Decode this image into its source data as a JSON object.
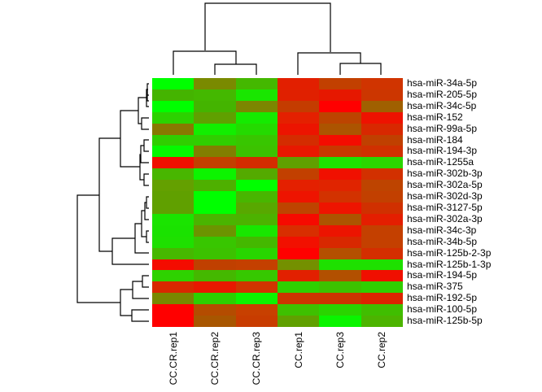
{
  "chart_data": {
    "type": "heatmap",
    "title": "",
    "xlabel": "",
    "ylabel": "",
    "color_scale": {
      "low": "#00ff00",
      "mid": "#808000",
      "high": "#ff0000"
    },
    "columns": [
      "CC.CR.rep1",
      "CC.CR.rep2",
      "CC.CR.rep3",
      "CC.rep1",
      "CC.rep3",
      "CC.rep2"
    ],
    "rows": [
      "hsa-miR-34a-5p",
      "hsa-miR-205-5p",
      "hsa-miR-34c-5p",
      "hsa-miR-152",
      "hsa-miR-99a-5p",
      "hsa-miR-184",
      "hsa-miR-194-3p",
      "hsa-miR-1255a",
      "hsa-miR-302b-3p",
      "hsa-miR-302a-5p",
      "hsa-miR-302d-3p",
      "hsa-miR-3127-5p",
      "hsa-miR-302a-3p",
      "hsa-miR-34c-3p",
      "hsa-miR-34b-5p",
      "hsa-miR-125b-2-3p",
      "hsa-miR-125b-1-3p",
      "hsa-miR-194-5p",
      "hsa-miR-375",
      "hsa-miR-192-5p",
      "hsa-miR-100-5p",
      "hsa-miR-125b-5p"
    ],
    "cell_colors": [
      [
        "#00ff00",
        "#7a8a00",
        "#44b800",
        "#e21f00",
        "#c24000",
        "#d03400"
      ],
      [
        "#44b400",
        "#44b800",
        "#19e600",
        "#e02000",
        "#e61800",
        "#cc3600"
      ],
      [
        "#00ff00",
        "#44b400",
        "#7c8600",
        "#c43c00",
        "#ff0000",
        "#a06000"
      ],
      [
        "#2cd200",
        "#60a000",
        "#15ea00",
        "#e42000",
        "#bc4400",
        "#ee1200"
      ],
      [
        "#887800",
        "#12ee00",
        "#24da00",
        "#ec1400",
        "#ac5400",
        "#d82800"
      ],
      [
        "#30ce00",
        "#30ce00",
        "#38c600",
        "#d42c00",
        "#f40c00",
        "#c04000"
      ],
      [
        "#06f800",
        "#827e00",
        "#3cc200",
        "#e81800",
        "#c83800",
        "#d03000"
      ],
      [
        "#f01000",
        "#c24000",
        "#d42c00",
        "#60a000",
        "#1ee200",
        "#2ad600"
      ],
      [
        "#48b600",
        "#0cf400",
        "#54aa00",
        "#c24000",
        "#f01000",
        "#d23000"
      ],
      [
        "#64a000",
        "#4eb000",
        "#00ff00",
        "#e42000",
        "#e02400",
        "#be4400"
      ],
      [
        "#60a000",
        "#00ff00",
        "#48b600",
        "#ee1400",
        "#d23200",
        "#c24000"
      ],
      [
        "#60a000",
        "#00ff00",
        "#58a800",
        "#be4400",
        "#ee1400",
        "#d03000"
      ],
      [
        "#1ae400",
        "#4ab400",
        "#4cb200",
        "#f60a00",
        "#ac5400",
        "#e41e00"
      ],
      [
        "#1ae200",
        "#6c9400",
        "#18e600",
        "#d82e00",
        "#ec1400",
        "#c44000"
      ],
      [
        "#1ee000",
        "#38c600",
        "#44b800",
        "#f21000",
        "#d82800",
        "#c44000"
      ],
      [
        "#46b800",
        "#3cc200",
        "#28d600",
        "#ff0000",
        "#b45000",
        "#d42e00"
      ],
      [
        "#f40c00",
        "#c04000",
        "#c44000",
        "#749000",
        "#1ee000",
        "#1ee000"
      ],
      [
        "#2ed200",
        "#44b800",
        "#36c800",
        "#e22000",
        "#b25000",
        "#f00f00"
      ],
      [
        "#d82800",
        "#e81800",
        "#d03400",
        "#2ed000",
        "#3cc200",
        "#30ce00"
      ],
      [
        "#788800",
        "#2cd000",
        "#0cf400",
        "#cc3400",
        "#cc3400",
        "#dc2400"
      ],
      [
        "#ff0000",
        "#b44c00",
        "#c84000",
        "#3ec000",
        "#2ad400",
        "#40be00"
      ],
      [
        "#ff0000",
        "#a85600",
        "#c83c00",
        "#60a000",
        "#0af400",
        "#4cb400"
      ]
    ],
    "approx_values_red_positive": [
      [
        -1.0,
        -0.05,
        -0.45,
        0.78,
        0.52,
        0.63
      ],
      [
        -0.45,
        -0.45,
        -0.8,
        0.76,
        0.82,
        0.59
      ],
      [
        -1.0,
        -0.45,
        -0.05,
        0.53,
        1.0,
        0.26
      ],
      [
        -0.65,
        -0.25,
        -0.84,
        0.79,
        0.47,
        0.87
      ],
      [
        0.07,
        -0.86,
        -0.71,
        0.85,
        0.35,
        0.7
      ],
      [
        -0.62,
        -0.62,
        -0.55,
        0.66,
        0.91,
        0.5
      ],
      [
        -0.95,
        0.02,
        -0.52,
        0.82,
        0.57,
        0.63
      ],
      [
        0.88,
        0.52,
        0.66,
        -0.25,
        -0.77,
        -0.67
      ],
      [
        -0.43,
        -0.9,
        -0.33,
        0.52,
        0.88,
        0.65
      ],
      [
        -0.25,
        -0.38,
        -1.0,
        0.79,
        0.76,
        0.49
      ],
      [
        -0.25,
        -1.0,
        -0.43,
        0.86,
        0.64,
        0.52
      ],
      [
        -0.25,
        -1.0,
        -0.31,
        0.49,
        0.86,
        0.63
      ],
      [
        -0.79,
        -0.41,
        -0.4,
        0.92,
        0.35,
        0.78
      ],
      [
        -0.78,
        -0.15,
        -0.81,
        0.69,
        0.85,
        0.54
      ],
      [
        -0.75,
        -0.55,
        -0.45,
        0.89,
        0.7,
        0.54
      ],
      [
        -0.44,
        -0.52,
        -0.67,
        1.0,
        0.41,
        0.66
      ],
      [
        0.91,
        0.5,
        0.54,
        -0.13,
        -0.75,
        -0.75
      ],
      [
        -0.64,
        -0.45,
        -0.57,
        0.77,
        0.39,
        0.88
      ],
      [
        0.7,
        0.82,
        0.63,
        -0.63,
        -0.52,
        -0.62
      ],
      [
        -0.07,
        -0.65,
        -0.9,
        0.6,
        0.6,
        0.72
      ],
      [
        1.0,
        0.41,
        0.56,
        -0.5,
        -0.67,
        -0.49
      ],
      [
        1.0,
        0.32,
        0.56,
        -0.25,
        -0.92,
        -0.41
      ]
    ],
    "row_dendrogram": true,
    "col_dendrogram": true,
    "legend": "none",
    "grid": false
  },
  "labels": {
    "columns": [
      "CC.CR.rep1",
      "CC.CR.rep2",
      "CC.CR.rep3",
      "CC.rep1",
      "CC.rep3",
      "CC.rep2"
    ],
    "rows": [
      "hsa-miR-34a-5p",
      "hsa-miR-205-5p",
      "hsa-miR-34c-5p",
      "hsa-miR-152",
      "hsa-miR-99a-5p",
      "hsa-miR-184",
      "hsa-miR-194-3p",
      "hsa-miR-1255a",
      "hsa-miR-302b-3p",
      "hsa-miR-302a-5p",
      "hsa-miR-302d-3p",
      "hsa-miR-3127-5p",
      "hsa-miR-302a-3p",
      "hsa-miR-34c-3p",
      "hsa-miR-34b-5p",
      "hsa-miR-125b-2-3p",
      "hsa-miR-125b-1-3p",
      "hsa-miR-194-5p",
      "hsa-miR-375",
      "hsa-miR-192-5p",
      "hsa-miR-100-5p",
      "hsa-miR-125b-5p"
    ]
  }
}
